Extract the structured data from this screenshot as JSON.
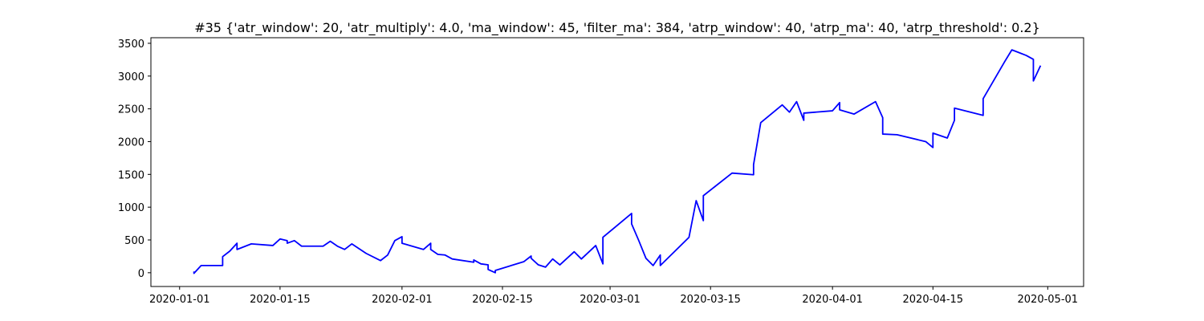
{
  "chart_data": {
    "type": "line",
    "title": "#35 {'atr_window': 20, 'atr_multiply': 4.0, 'ma_window': 45, 'filter_ma': 384, 'atrp_window': 40, 'atrp_ma': 40, 'atrp_threshold': 0.2}",
    "color": "#0000ff",
    "x": [
      "2020-01-03",
      "2020-01-03",
      "2020-01-04",
      "2020-01-07",
      "2020-01-07",
      "2020-01-08",
      "2020-01-09",
      "2020-01-09",
      "2020-01-11",
      "2020-01-14",
      "2020-01-15",
      "2020-01-16",
      "2020-01-16",
      "2020-01-17",
      "2020-01-18",
      "2020-01-21",
      "2020-01-22",
      "2020-01-23",
      "2020-01-24",
      "2020-01-25",
      "2020-01-27",
      "2020-01-29",
      "2020-01-30",
      "2020-01-31",
      "2020-02-01",
      "2020-02-01",
      "2020-02-04",
      "2020-02-05",
      "2020-02-05",
      "2020-02-06",
      "2020-02-07",
      "2020-02-08",
      "2020-02-11",
      "2020-02-11",
      "2020-02-12",
      "2020-02-13",
      "2020-02-13",
      "2020-02-14",
      "2020-02-14",
      "2020-02-18",
      "2020-02-19",
      "2020-02-19",
      "2020-02-20",
      "2020-02-21",
      "2020-02-22",
      "2020-02-23",
      "2020-02-25",
      "2020-02-26",
      "2020-02-28",
      "2020-02-29",
      "2020-02-29",
      "2020-03-04",
      "2020-03-04",
      "2020-03-05",
      "2020-03-06",
      "2020-03-07",
      "2020-03-08",
      "2020-03-08",
      "2020-03-12",
      "2020-03-13",
      "2020-03-14",
      "2020-03-14",
      "2020-03-18",
      "2020-03-21",
      "2020-03-21",
      "2020-03-22",
      "2020-03-25",
      "2020-03-26",
      "2020-03-27",
      "2020-03-28",
      "2020-03-28",
      "2020-04-01",
      "2020-04-02",
      "2020-04-02",
      "2020-04-04",
      "2020-04-07",
      "2020-04-08",
      "2020-04-08",
      "2020-04-10",
      "2020-04-14",
      "2020-04-15",
      "2020-04-15",
      "2020-04-15",
      "2020-04-15",
      "2020-04-17",
      "2020-04-18",
      "2020-04-18",
      "2020-04-22",
      "2020-04-22",
      "2020-04-25",
      "2020-04-26",
      "2020-04-28",
      "2020-04-29",
      "2020-04-29",
      "2020-04-29",
      "2020-04-30"
    ],
    "values": [
      20,
      -10,
      110,
      110,
      245,
      330,
      450,
      355,
      440,
      415,
      515,
      490,
      450,
      490,
      405,
      405,
      480,
      405,
      355,
      440,
      295,
      185,
      270,
      490,
      550,
      450,
      355,
      450,
      355,
      280,
      270,
      210,
      160,
      195,
      135,
      120,
      50,
      0,
      35,
      170,
      255,
      220,
      120,
      85,
      210,
      120,
      320,
      210,
      415,
      135,
      540,
      905,
      745,
      490,
      220,
      110,
      270,
      110,
      540,
      1100,
      795,
      1175,
      1520,
      1495,
      1650,
      2290,
      2560,
      2450,
      2610,
      2325,
      2435,
      2470,
      2595,
      2485,
      2420,
      2610,
      2365,
      2115,
      2105,
      2000,
      1910,
      2070,
      2000,
      2130,
      2055,
      2325,
      2510,
      2400,
      2655,
      3220,
      3400,
      3315,
      3255,
      3120,
      2925,
      3160
    ],
    "xlim": [
      "2019-12-28",
      "2020-05-06"
    ],
    "xticks": [
      "2020-01-01",
      "2020-01-15",
      "2020-02-01",
      "2020-02-15",
      "2020-03-01",
      "2020-03-15",
      "2020-04-01",
      "2020-04-15",
      "2020-05-01"
    ],
    "ylim": [
      -210,
      3585
    ],
    "yticks": [
      0,
      500,
      1000,
      1500,
      2000,
      2500,
      3000,
      3500
    ]
  }
}
